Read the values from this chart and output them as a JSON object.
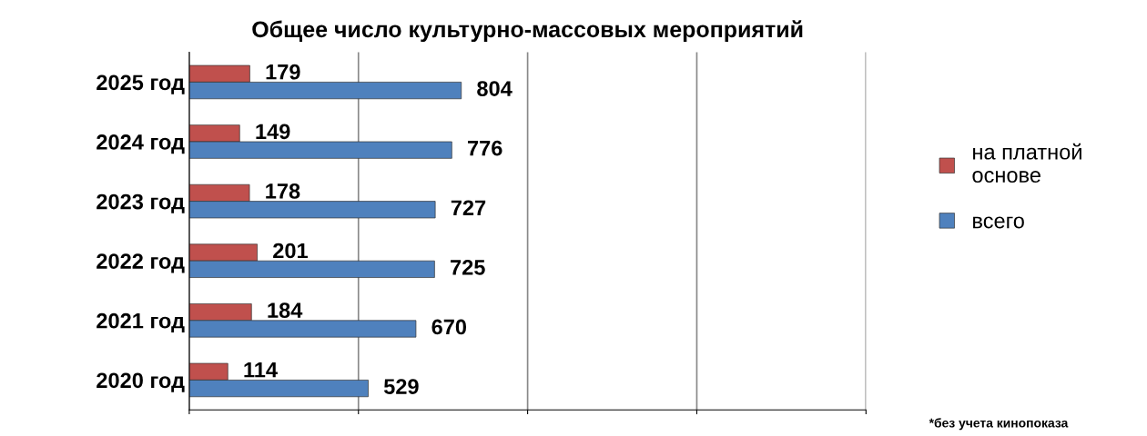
{
  "chart_data": {
    "type": "bar",
    "orientation": "horizontal",
    "title": "Общее число культурно-массовых мероприятий",
    "categories": [
      "2025 год",
      "2024 год",
      "2023 год",
      "2022 год",
      "2021 год",
      "2020 год"
    ],
    "series": [
      {
        "name": "на платной основе",
        "color": "#c0504d",
        "values": [
          179,
          149,
          178,
          201,
          184,
          114
        ]
      },
      {
        "name": "всего",
        "color": "#4f81bd",
        "values": [
          804,
          776,
          727,
          725,
          670,
          529
        ]
      }
    ],
    "xlim": [
      0,
      2000
    ],
    "xticks": [
      {
        "value": 0,
        "label": null
      },
      {
        "value": 500,
        "label": null
      },
      {
        "value": 1000,
        "label": null
      },
      {
        "value": 1500,
        "label": null
      },
      {
        "value": 2000,
        "label": null
      }
    ],
    "tick_labels": "y",
    "grid": "x",
    "data_labels": true,
    "legend": "right",
    "annotations": [
      "*без учета кинопоказа"
    ]
  }
}
